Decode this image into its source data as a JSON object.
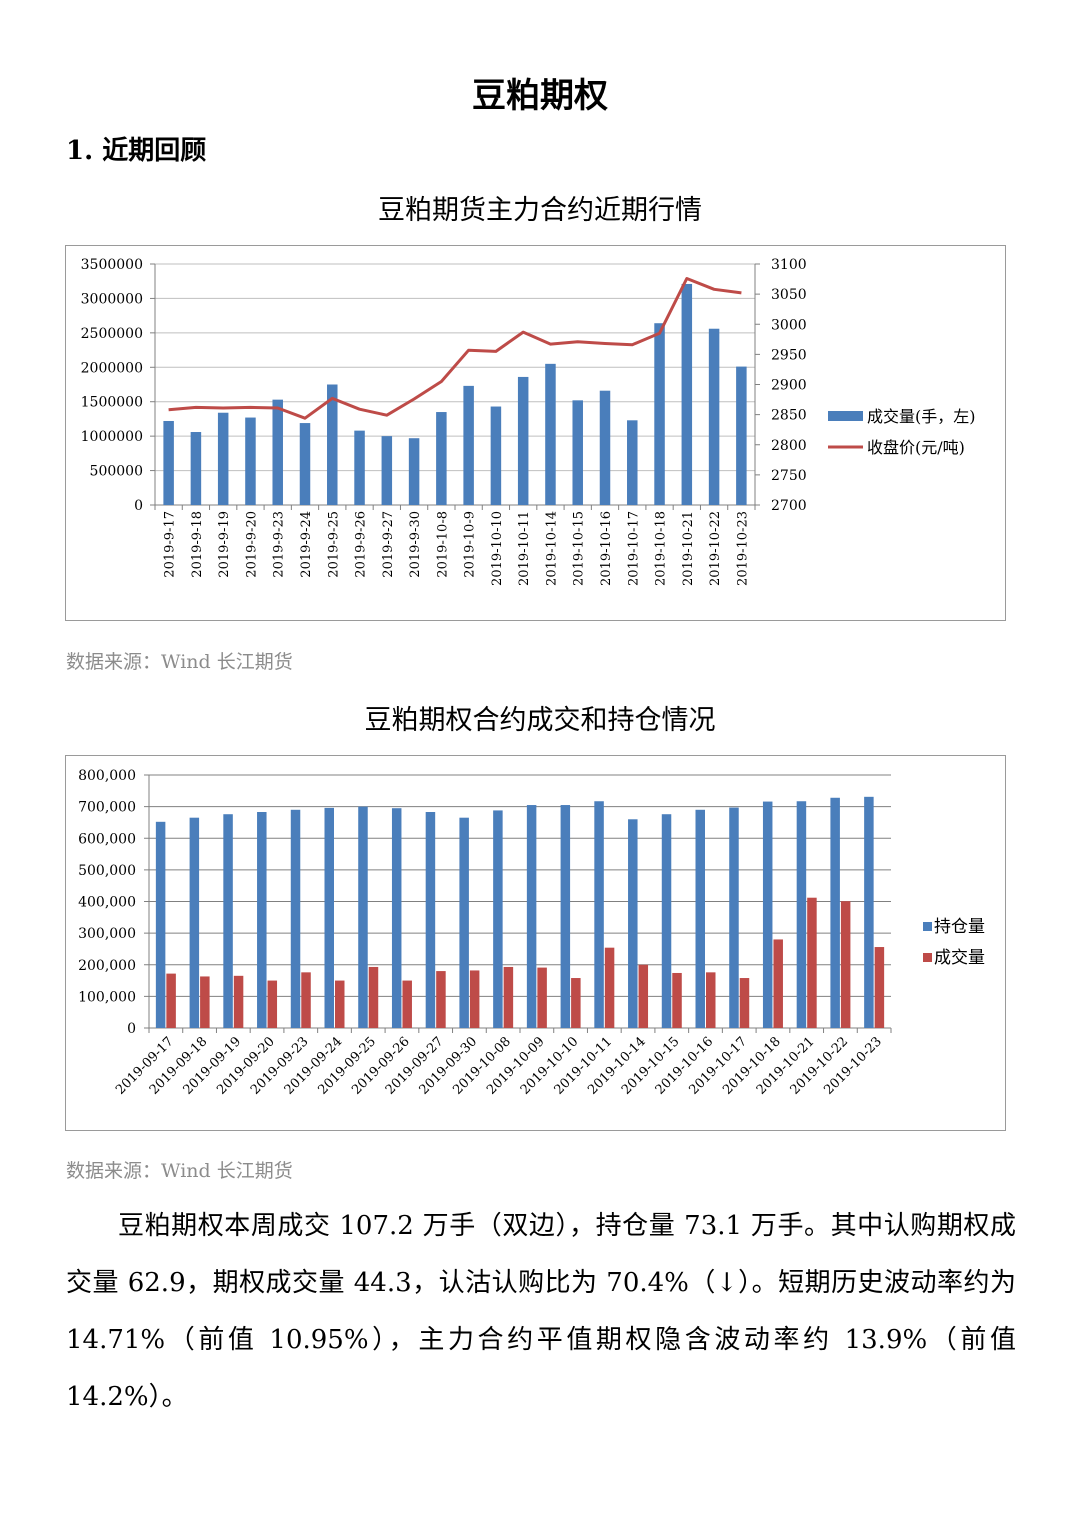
{
  "page": {
    "title": "豆粕期权",
    "section_heading": "1. 近期回顾",
    "body_text": "豆粕期权本周成交 107.2 万手（双边），持仓量 73.1 万手。其中认购期权成交量 62.9，期权成交量 44.3，认沽认购比为 70.4%（↓）。短期历史波动率约为 14.71%（前值 10.95%），主力合约平值期权隐含波动率约 13.9%（前值 14.2%）。"
  },
  "charts": {
    "futures": {
      "title": "豆粕期货主力合约近期行情",
      "source": "数据来源：Wind  长江期货"
    },
    "options": {
      "title": "豆粕期权合约成交和持仓情况",
      "source": "数据来源：Wind  长江期货"
    }
  },
  "chart_data": [
    {
      "type": "bar",
      "title": "豆粕期货主力合约近期行情",
      "categories": [
        "2019-9-17",
        "2019-9-18",
        "2019-9-19",
        "2019-9-20",
        "2019-9-23",
        "2019-9-24",
        "2019-9-25",
        "2019-9-26",
        "2019-9-27",
        "2019-9-30",
        "2019-10-8",
        "2019-10-9",
        "2019-10-10",
        "2019-10-11",
        "2019-10-14",
        "2019-10-15",
        "2019-10-16",
        "2019-10-17",
        "2019-10-18",
        "2019-10-21",
        "2019-10-22",
        "2019-10-23"
      ],
      "series": [
        {
          "name": "成交量(手，左)",
          "type": "bar",
          "axis": "left",
          "color": "#4a7ebb",
          "values": [
            1220000,
            1060000,
            1340000,
            1270000,
            1530000,
            1190000,
            1750000,
            1080000,
            1000000,
            970000,
            1350000,
            1730000,
            1430000,
            1860000,
            2050000,
            1520000,
            1660000,
            1230000,
            2640000,
            3210000,
            2560000,
            2010000
          ]
        },
        {
          "name": "收盘价(元/吨)",
          "type": "line",
          "axis": "right",
          "color": "#be4b48",
          "values": [
            2858,
            2862,
            2861,
            2862,
            2861,
            2844,
            2877,
            2859,
            2849,
            2876,
            2905,
            2957,
            2955,
            2987,
            2967,
            2971,
            2968,
            2966,
            2985,
            3076,
            3058,
            3052
          ]
        }
      ],
      "ylim_left": [
        0,
        3500000
      ],
      "yticks_left": [
        "0",
        "500000",
        "1000000",
        "1500000",
        "2000000",
        "2500000",
        "3000000",
        "3500000"
      ],
      "ylim_right": [
        2700,
        3100
      ],
      "yticks_right": [
        "2700",
        "2750",
        "2800",
        "2850",
        "2900",
        "2950",
        "3000",
        "3050",
        "3100"
      ],
      "grid": true,
      "legend": "right"
    },
    {
      "type": "bar",
      "title": "豆粕期权合约成交和持仓情况",
      "categories": [
        "2019-09-17",
        "2019-09-18",
        "2019-09-19",
        "2019-09-20",
        "2019-09-23",
        "2019-09-24",
        "2019-09-25",
        "2019-09-26",
        "2019-09-27",
        "2019-09-30",
        "2019-10-08",
        "2019-10-09",
        "2019-10-10",
        "2019-10-11",
        "2019-10-14",
        "2019-10-15",
        "2019-10-16",
        "2019-10-17",
        "2019-10-18",
        "2019-10-21",
        "2019-10-22",
        "2019-10-23"
      ],
      "series": [
        {
          "name": "持仓量",
          "color": "#4a7ebb",
          "values": [
            652000,
            665000,
            676000,
            683000,
            690000,
            696000,
            700000,
            695000,
            683000,
            665000,
            688000,
            705000,
            705000,
            717000,
            660000,
            676000,
            690000,
            697000,
            716000,
            717000,
            728000,
            731000
          ]
        },
        {
          "name": "成交量",
          "color": "#be4b48",
          "values": [
            172000,
            163000,
            165000,
            150000,
            176000,
            150000,
            193000,
            150000,
            180000,
            182000,
            193000,
            191000,
            158000,
            254000,
            200000,
            174000,
            176000,
            158000,
            280000,
            412000,
            401000,
            256000
          ]
        }
      ],
      "ylim": [
        0,
        800000
      ],
      "yticks": [
        "0",
        "100,000",
        "200,000",
        "300,000",
        "400,000",
        "500,000",
        "600,000",
        "700,000",
        "800,000"
      ],
      "grid": true,
      "legend": "right"
    }
  ]
}
